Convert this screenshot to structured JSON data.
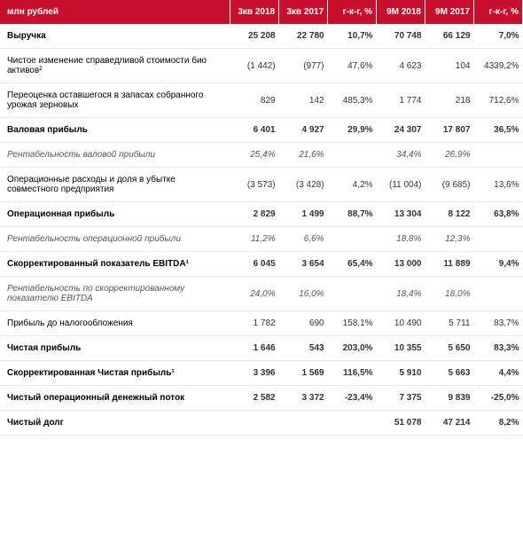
{
  "header": {
    "label": "млн рублей",
    "cols": [
      "3кв 2018",
      "3кв 2017",
      "г-к-г, %",
      "9М 2018",
      "9М 2017",
      "г-к-г, %"
    ]
  },
  "rows": [
    {
      "style": "bold",
      "label": "Выручка",
      "vals": [
        "25 208",
        "22 780",
        "10,7%",
        "70 748",
        "66 129",
        "7,0%"
      ]
    },
    {
      "style": "",
      "label": "Чистое изменение справедливой стоимости био активов²",
      "vals": [
        "(1 442)",
        "(977)",
        "47,6%",
        "4 623",
        "104",
        "4339,2%"
      ]
    },
    {
      "style": "",
      "label": "Переоценка оставшегося в запасах собранного урожая зерновых",
      "vals": [
        "829",
        "142",
        "485,3%",
        "1 774",
        "218",
        "712,6%"
      ]
    },
    {
      "style": "bold",
      "label": "Валовая прибыль",
      "vals": [
        "6 401",
        "4 927",
        "29,9%",
        "24 307",
        "17 807",
        "36,5%"
      ]
    },
    {
      "style": "italic",
      "label": "Рентабельность валовой прибыли",
      "vals": [
        "25,4%",
        "21,6%",
        "",
        "34,4%",
        "26,9%",
        ""
      ]
    },
    {
      "style": "",
      "label": "Операционные расходы и доля в убытке совместного предприятия",
      "vals": [
        "(3 573)",
        "(3 428)",
        "4,2%",
        "(11 004)",
        "(9 685)",
        "13,6%"
      ]
    },
    {
      "style": "bold",
      "label": "Операционная прибыль",
      "vals": [
        "2 829",
        "1 499",
        "88,7%",
        "13 304",
        "8 122",
        "63,8%"
      ]
    },
    {
      "style": "italic",
      "label": "Рентабельность операционной прибыли",
      "vals": [
        "11,2%",
        "6,6%",
        "",
        "18,8%",
        "12,3%",
        ""
      ]
    },
    {
      "style": "bold",
      "label": "Скорректированный показатель EBITDA¹",
      "vals": [
        "6 045",
        "3 654",
        "65,4%",
        "13 000",
        "11 889",
        "9,4%"
      ]
    },
    {
      "style": "italic",
      "label": "Рентабельность по скорректированному показателю EBITDA",
      "vals": [
        "24,0%",
        "16,0%",
        "",
        "18,4%",
        "18,0%",
        ""
      ]
    },
    {
      "style": "",
      "label": "Прибыль до налогообложения",
      "vals": [
        "1 782",
        "690",
        "158,1%",
        "10 490",
        "5 711",
        "83,7%"
      ]
    },
    {
      "style": "bold",
      "label": "Чистая прибыль",
      "vals": [
        "1 646",
        "543",
        "203,0%",
        "10 355",
        "5 650",
        "83,3%"
      ]
    },
    {
      "style": "bold",
      "label": "Скорректированная Чистая прибыль¹",
      "vals": [
        "3 396",
        "1 569",
        "116,5%",
        "5 910",
        "5 663",
        "4,4%"
      ]
    },
    {
      "style": "bold",
      "label": "Чистый операционный денежный поток",
      "vals": [
        "2 582",
        "3 372",
        "-23,4%",
        "7 375",
        "9 839",
        "-25,0%"
      ]
    },
    {
      "style": "bold",
      "label": "Чистый долг",
      "vals": [
        "",
        "",
        "",
        "51 078",
        "47 214",
        "8,2%"
      ]
    }
  ]
}
